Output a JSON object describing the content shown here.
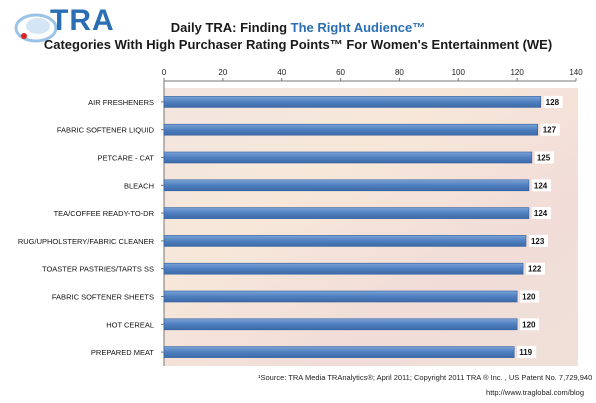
{
  "logo": {
    "text": "TRA",
    "icon": "tra-swirl-logo"
  },
  "header": {
    "title_prefix": "Daily TRA: Finding ",
    "title_highlight": "The Right Audience™",
    "subtitle": "Categories With High Purchaser Rating Points™ For Women's Entertainment (WE)"
  },
  "colors": {
    "bar": "#4f7fbf",
    "bar_edge": "#2f5f9f",
    "highlight": "#2a6fb3"
  },
  "chart_data": {
    "type": "bar",
    "orientation": "horizontal",
    "categories": [
      "AIR FRESHENERS",
      "FABRIC SOFTENER LIQUID",
      "PETCARE - CAT",
      "BLEACH",
      "TEA/COFFEE READY-TO-DR",
      "RUG/UPHOLSTERY/FABRIC CLEANER",
      "TOASTER PASTRIES/TARTS SS",
      "FABRIC SOFTENER SHEETS",
      "HOT CEREAL",
      "PREPARED MEAT"
    ],
    "values": [
      128,
      127,
      125,
      124,
      124,
      123,
      122,
      120,
      120,
      119
    ],
    "xlim": [
      0,
      140
    ],
    "xticks": [
      0,
      20,
      40,
      60,
      80,
      100,
      120,
      140
    ],
    "xaxis_position": "top",
    "grid": false,
    "legend": "none"
  },
  "footnote": {
    "source": "¹Source:  TRA Media TRAnalytics®; April  2011; Copyright 2011 TRA ® Inc. , US Patent No. 7,729,940",
    "url": "http://www.traglobal.com/blog"
  }
}
